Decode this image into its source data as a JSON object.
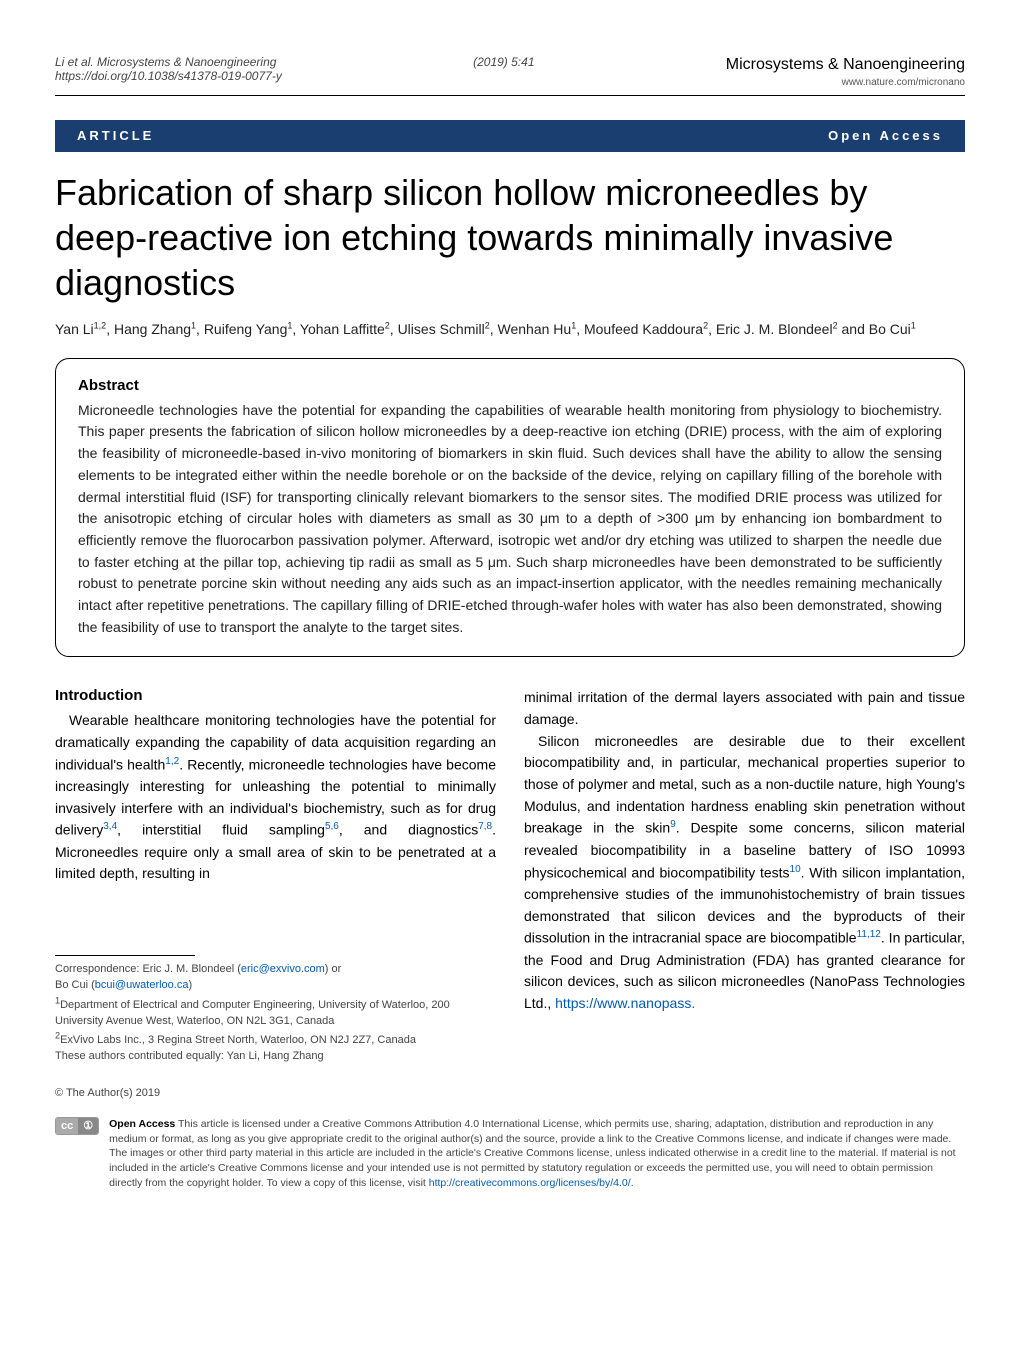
{
  "header": {
    "left": "Li et al. Microsystems & Nanoengineering",
    "doi": "https://doi.org/10.1038/s41378-019-0077-y",
    "mid": "(2019) 5:41",
    "journal": "Microsystems & Nanoengineering",
    "url": "www.nature.com/micronano"
  },
  "badge": {
    "left": "ARTICLE",
    "right": "Open Access"
  },
  "title": "Fabrication of sharp silicon hollow microneedles by deep-reactive ion etching towards minimally invasive diagnostics",
  "authors_html": "Yan Li<sup>1,2</sup>, Hang Zhang<sup>1</sup>, Ruifeng Yang<sup>1</sup>, Yohan Laffitte<sup>2</sup>, Ulises Schmill<sup>2</sup>, Wenhan Hu<sup>1</sup>, Moufeed Kaddoura<sup>2</sup>, Eric J. M. Blondeel<sup>2</sup> and Bo Cui<sup>1</sup>",
  "abstract": {
    "head": "Abstract",
    "body": "Microneedle technologies have the potential for expanding the capabilities of wearable health monitoring from physiology to biochemistry. This paper presents the fabrication of silicon hollow microneedles by a deep-reactive ion etching (DRIE) process, with the aim of exploring the feasibility of microneedle-based in-vivo monitoring of biomarkers in skin fluid. Such devices shall have the ability to allow the sensing elements to be integrated either within the needle borehole or on the backside of the device, relying on capillary filling of the borehole with dermal interstitial fluid (ISF) for transporting clinically relevant biomarkers to the sensor sites. The modified DRIE process was utilized for the anisotropic etching of circular holes with diameters as small as 30 μm to a depth of >300 μm by enhancing ion bombardment to efficiently remove the fluorocarbon passivation polymer. Afterward, isotropic wet and/or dry etching was utilized to sharpen the needle due to faster etching at the pillar top, achieving tip radii as small as 5 μm. Such sharp microneedles have been demonstrated to be sufficiently robust to penetrate porcine skin without needing any aids such as an impact-insertion applicator, with the needles remaining mechanically intact after repetitive penetrations. The capillary filling of DRIE-etched through-wafer holes with water has also been demonstrated, showing the feasibility of use to transport the analyte to the target sites."
  },
  "intro": {
    "head": "Introduction",
    "left_para": "Wearable healthcare monitoring technologies have the potential for dramatically expanding the capability of data acquisition regarding an individual's health",
    "left_refs1": "1,2",
    "left_para2": ". Recently, microneedle technologies have become increasingly interesting for unleashing the potential to minimally invasively interfere with an individual's biochemistry, such as for drug delivery",
    "left_refs2": "3,4",
    "left_para3": ", interstitial fluid sampling",
    "left_refs3": "5,6",
    "left_para4": ", and diagnostics",
    "left_refs4": "7,8",
    "left_para5": ". Microneedles require only a small area of skin to be penetrated at a limited depth, resulting in",
    "right_para1": "minimal irritation of the dermal layers associated with pain and tissue damage.",
    "right_para2a": "Silicon microneedles are desirable due to their excellent biocompatibility and, in particular, mechanical properties superior to those of polymer and metal, such as a non-ductile nature, high Young's Modulus, and indentation hardness enabling skin penetration without breakage in the skin",
    "right_ref9": "9",
    "right_para2b": ". Despite some concerns, silicon material revealed biocompatibility in a baseline battery of ISO 10993 physicochemical and biocompatibility tests",
    "right_ref10": "10",
    "right_para2c": ". With silicon implantation, comprehensive studies of the immunohistochemistry of brain tissues demonstrated that silicon devices and the byproducts of their dissolution in the intracranial space are biocompatible",
    "right_ref1112": "11,12",
    "right_para2d": ". In particular, the Food and Drug Administration (FDA) has granted clearance for silicon devices, such as silicon microneedles (NanoPass Technologies Ltd., ",
    "right_link": "https://www.nanopass."
  },
  "correspondence": {
    "line1": "Correspondence: Eric J. M. Blondeel (",
    "email1": "eric@exvivo.com",
    "line1b": ") or",
    "line2": "Bo Cui (",
    "email2": "bcui@uwaterloo.ca",
    "line2b": ")",
    "aff1": "1Department of Electrical and Computer Engineering, University of Waterloo, 200 University Avenue West, Waterloo, ON N2L 3G1, Canada",
    "aff2": "2ExVivo Labs Inc., 3 Regina Street North, Waterloo, ON N2J 2Z7, Canada",
    "equal": "These authors contributed equally: Yan Li, Hang Zhang"
  },
  "copyright": {
    "line": "© The Author(s) 2019",
    "cc_left": "cc",
    "cc_right": "①",
    "oa_bold": "Open Access",
    "text": " This article is licensed under a Creative Commons Attribution 4.0 International License, which permits use, sharing, adaptation, distribution and reproduction in any medium or format, as long as you give appropriate credit to the original author(s) and the source, provide a link to the Creative Commons license, and indicate if changes were made. The images or other third party material in this article are included in the article's Creative Commons license, unless indicated otherwise in a credit line to the material. If material is not included in the article's Creative Commons license and your intended use is not permitted by statutory regulation or exceeds the permitted use, you will need to obtain permission directly from the copyright holder. To view a copy of this license, visit ",
    "license_url": "http://creativecommons.org/licenses/by/4.0/"
  },
  "colors": {
    "brand_blue": "#1a3e6f",
    "link_blue": "#005bbb"
  },
  "typography": {
    "title_fontsize_pt": 27,
    "body_fontsize_pt": 10.5,
    "abstract_fontsize_pt": 10.5
  }
}
